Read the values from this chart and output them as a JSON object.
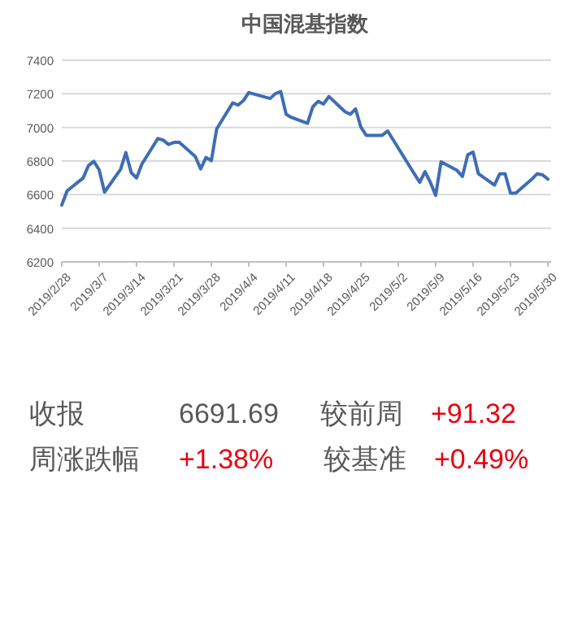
{
  "chart_data": [
    {
      "type": "line",
      "title": "中国混基指数",
      "x": [
        "2019-02-28",
        "2019-03-01",
        "2019-03-04",
        "2019-03-05",
        "2019-03-06",
        "2019-03-07",
        "2019-03-08",
        "2019-03-11",
        "2019-03-12",
        "2019-03-13",
        "2019-03-14",
        "2019-03-15",
        "2019-03-18",
        "2019-03-19",
        "2019-03-20",
        "2019-03-21",
        "2019-03-22",
        "2019-03-25",
        "2019-03-26",
        "2019-03-27",
        "2019-03-28",
        "2019-03-29",
        "2019-04-01",
        "2019-04-02",
        "2019-04-03",
        "2019-04-04",
        "2019-04-08",
        "2019-04-09",
        "2019-04-10",
        "2019-04-11",
        "2019-04-12",
        "2019-04-15",
        "2019-04-16",
        "2019-04-17",
        "2019-04-18",
        "2019-04-19",
        "2019-04-22",
        "2019-04-23",
        "2019-04-24",
        "2019-04-25",
        "2019-04-26",
        "2019-04-29",
        "2019-04-30",
        "2019-05-06",
        "2019-05-07",
        "2019-05-08",
        "2019-05-09",
        "2019-05-10",
        "2019-05-13",
        "2019-05-14",
        "2019-05-15",
        "2019-05-16",
        "2019-05-17",
        "2019-05-20",
        "2019-05-21",
        "2019-05-22",
        "2019-05-23",
        "2019-05-24",
        "2019-05-27",
        "2019-05-28",
        "2019-05-29",
        "2019-05-30"
      ],
      "series": [
        {
          "color": "#3e6db5",
          "values": [
            6538,
            6622,
            6699,
            6773,
            6798,
            6747,
            6615,
            6750,
            6850,
            6731,
            6699,
            6782,
            6934,
            6924,
            6898,
            6911,
            6911,
            6827,
            6753,
            6821,
            6802,
            6991,
            7146,
            7133,
            7159,
            7207,
            7172,
            7201,
            7213,
            7078,
            7059,
            7024,
            7123,
            7155,
            7139,
            7184,
            7094,
            7078,
            7110,
            7001,
            6953,
            6953,
            6979,
            6673,
            6737,
            6673,
            6596,
            6795,
            6744,
            6708,
            6837,
            6853,
            6724,
            6657,
            6724,
            6724,
            6609,
            6609,
            6692,
            6724,
            6718,
            6692
          ]
        }
      ],
      "xlim": [
        "2019-02-28",
        "2019-05-30"
      ],
      "xticks": [
        {
          "value": "2019-02-28",
          "label": "2019/2/28"
        },
        {
          "value": "2019-03-07",
          "label": "2019/3/7"
        },
        {
          "value": "2019-03-14",
          "label": "2019/3/14"
        },
        {
          "value": "2019-03-21",
          "label": "2019/3/21"
        },
        {
          "value": "2019-03-28",
          "label": "2019/3/28"
        },
        {
          "value": "2019-04-04",
          "label": "2019/4/4"
        },
        {
          "value": "2019-04-11",
          "label": "2019/4/11"
        },
        {
          "value": "2019-04-18",
          "label": "2019/4/18"
        },
        {
          "value": "2019-04-25",
          "label": "2019/4/25"
        },
        {
          "value": "2019-05-02",
          "label": "2019/5/2"
        },
        {
          "value": "2019-05-09",
          "label": "2019/5/9"
        },
        {
          "value": "2019-05-16",
          "label": "2019/5/16"
        },
        {
          "value": "2019-05-23",
          "label": "2019/5/23"
        },
        {
          "value": "2019-05-30",
          "label": "2019/5/30"
        }
      ],
      "ylim": [
        6200,
        7400
      ],
      "yticks": [
        6200,
        6400,
        6600,
        6800,
        7000,
        7200,
        7400
      ],
      "grid": "y",
      "marker": "none",
      "line_style": "solid"
    },
    {
      "type": "other",
      "annotations": [
        "收报",
        "6691.69",
        "较前周",
        "+91.32",
        "周涨跌幅",
        "+1.38%",
        "较基准",
        "+0.49%"
      ],
      "colors": [
        "#595959",
        "#595959",
        "#595959",
        "#e60012",
        "#595959",
        "#e60012",
        "#595959",
        "#e60012"
      ]
    }
  ]
}
